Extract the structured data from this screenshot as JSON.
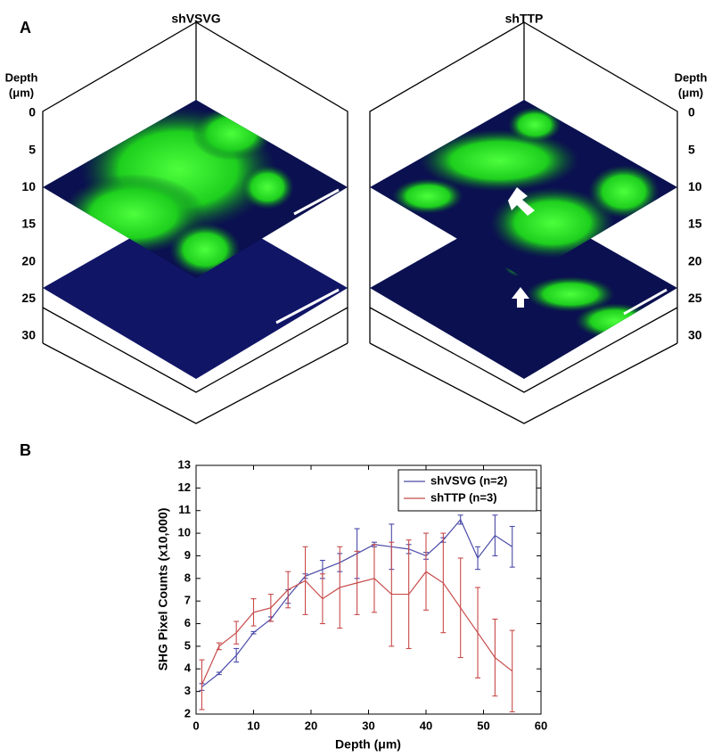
{
  "panel_a": {
    "label": "A",
    "left_title": "shVSVG",
    "right_title": "shTTP",
    "depth_label": [
      "Depth",
      "(μm)"
    ],
    "depth_ticks": [
      0,
      5,
      10,
      15,
      20,
      25,
      30
    ]
  },
  "chart_data": {
    "type": "line",
    "panel_label": "B",
    "xlabel": "Depth (μm)",
    "ylabel": "SHG Pixel Counts (x10,000)",
    "x": [
      1,
      4,
      7,
      10,
      13,
      16,
      19,
      22,
      25,
      28,
      31,
      34,
      37,
      40,
      43,
      46,
      49,
      52,
      55
    ],
    "series": [
      {
        "name": "shVSVG (n=2)",
        "color": "#4a4aa8",
        "values": [
          3.2,
          3.8,
          4.6,
          5.6,
          6.2,
          7.2,
          8.1,
          8.4,
          8.7,
          9.1,
          9.5,
          9.4,
          9.3,
          9.0,
          9.7,
          10.6,
          8.9,
          9.9,
          9.4
        ],
        "errors": [
          0.15,
          0.05,
          0.3,
          0.05,
          0.1,
          0.3,
          0.1,
          0.4,
          0.4,
          1.1,
          0.1,
          1.0,
          0.2,
          0.15,
          0.1,
          0.2,
          0.5,
          0.9,
          0.9
        ]
      },
      {
        "name": "shTTP (n=3)",
        "color": "#c84a4a",
        "values": [
          3.3,
          5.0,
          5.6,
          6.5,
          6.7,
          7.5,
          7.9,
          7.1,
          7.6,
          7.8,
          8.0,
          7.3,
          7.3,
          8.3,
          7.8,
          6.7,
          5.6,
          4.5,
          3.9
        ],
        "errors": [
          1.1,
          0.15,
          0.5,
          0.6,
          0.6,
          0.8,
          1.5,
          1.1,
          1.8,
          1.4,
          1.5,
          2.3,
          2.4,
          1.7,
          2.2,
          2.2,
          2.0,
          1.7,
          1.8
        ]
      }
    ],
    "xlim": [
      0,
      60
    ],
    "xticks": [
      0,
      10,
      20,
      30,
      40,
      50,
      60
    ],
    "ylim": [
      2,
      13
    ],
    "yticks": [
      2,
      3,
      4,
      5,
      6,
      7,
      8,
      9,
      10,
      11,
      12,
      13
    ],
    "legend": "upper right",
    "grid": false
  }
}
